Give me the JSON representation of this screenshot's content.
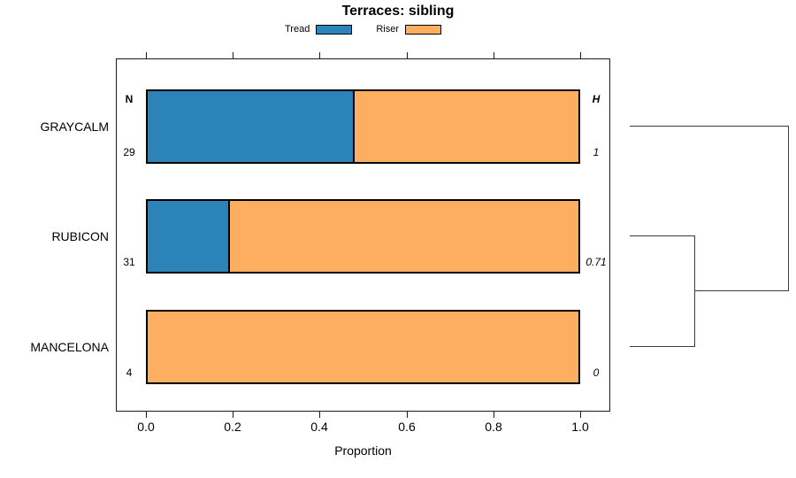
{
  "title": "Terraces: sibling",
  "legend": {
    "items": [
      {
        "label": "Tread",
        "color": "#2B83BA"
      },
      {
        "label": "Riser",
        "color": "#FDAE61"
      }
    ]
  },
  "axis": {
    "xlabel": "Proportion",
    "xlim": [
      0,
      1
    ],
    "ticks": [
      {
        "value": 0.0,
        "label": "0.0"
      },
      {
        "value": 0.2,
        "label": "0.2"
      },
      {
        "value": 0.4,
        "label": "0.4"
      },
      {
        "value": 0.6,
        "label": "0.6"
      },
      {
        "value": 0.8,
        "label": "0.8"
      },
      {
        "value": 1.0,
        "label": "1.0"
      }
    ]
  },
  "annotations": {
    "n_header": "N",
    "h_header": "H"
  },
  "rows": [
    {
      "label": "GRAYCALM",
      "n": "29",
      "h": "1",
      "tread": 0.48,
      "riser": 0.52
    },
    {
      "label": "RUBICON",
      "n": "31",
      "h": "0.71",
      "tread": 0.19,
      "riser": 0.81
    },
    {
      "label": "MANCELONA",
      "n": "4",
      "h": "0",
      "tread": 0.0,
      "riser": 1.0
    }
  ],
  "chart_data": {
    "type": "bar",
    "orientation": "horizontal",
    "stacked": true,
    "title": "Terraces: sibling",
    "xlabel": "Proportion",
    "xlim": [
      0,
      1
    ],
    "x_ticks": [
      0.0,
      0.2,
      0.4,
      0.6,
      0.8,
      1.0
    ],
    "grid": false,
    "legend_position": "top-center",
    "categories": [
      "GRAYCALM",
      "RUBICON",
      "MANCELONA"
    ],
    "series": [
      {
        "name": "Tread",
        "color": "#2B83BA",
        "values": [
          0.48,
          0.19,
          0.0
        ]
      },
      {
        "name": "Riser",
        "color": "#FDAE61",
        "values": [
          0.52,
          0.81,
          1.0
        ]
      }
    ],
    "sample_size_column": {
      "header": "N",
      "values": [
        29,
        31,
        4
      ]
    },
    "diversity_column": {
      "header": "H",
      "values": [
        1,
        0.71,
        0
      ]
    },
    "dendrogram": {
      "side": "right",
      "leaves": [
        "GRAYCALM",
        "RUBICON",
        "MANCELONA"
      ],
      "merges": [
        {
          "members": [
            "RUBICON",
            "MANCELONA"
          ],
          "relative_height": 0.41
        },
        {
          "members": [
            "RUBICON+MANCELONA",
            "GRAYCALM"
          ],
          "relative_height": 1.0
        }
      ]
    }
  }
}
